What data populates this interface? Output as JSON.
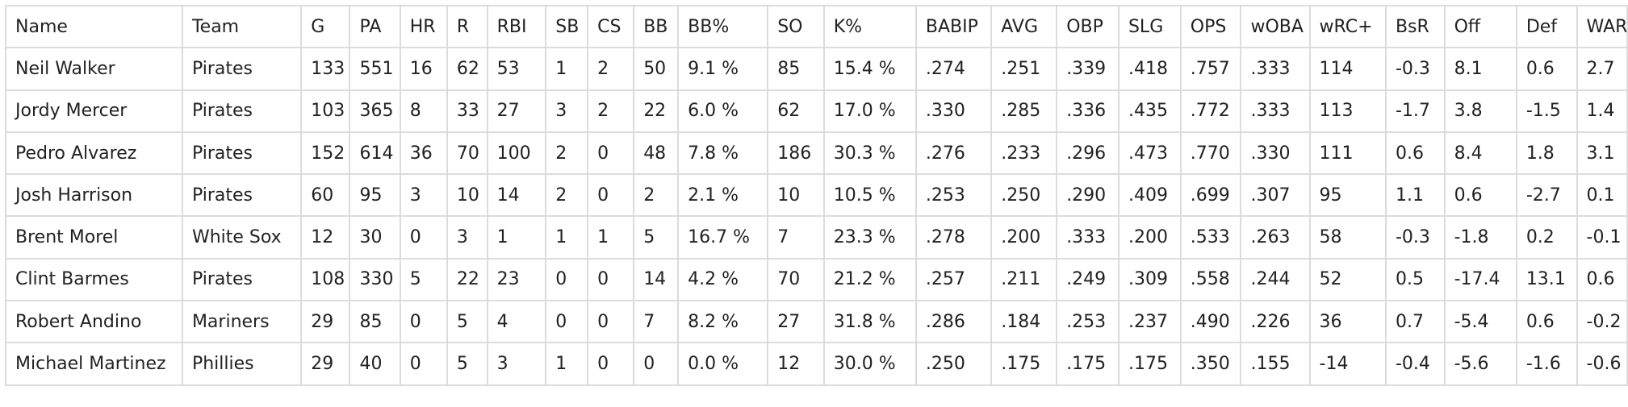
{
  "table": {
    "columns": [
      "Name",
      "Team",
      "G",
      "PA",
      "HR",
      "R",
      "RBI",
      "SB",
      "CS",
      "BB",
      "BB%",
      "SO",
      "K%",
      "BABIP",
      "AVG",
      "OBP",
      "SLG",
      "OPS",
      "wOBA",
      "wRC+",
      "BsR",
      "Off",
      "Def",
      "WAR"
    ],
    "rows": [
      [
        "Neil Walker",
        "Pirates",
        "133",
        "551",
        "16",
        "62",
        "53",
        "1",
        "2",
        "50",
        "9.1 %",
        "85",
        "15.4 %",
        ".274",
        ".251",
        ".339",
        ".418",
        ".757",
        ".333",
        "114",
        "-0.3",
        "8.1",
        "0.6",
        "2.7"
      ],
      [
        "Jordy Mercer",
        "Pirates",
        "103",
        "365",
        "8",
        "33",
        "27",
        "3",
        "2",
        "22",
        "6.0 %",
        "62",
        "17.0 %",
        ".330",
        ".285",
        ".336",
        ".435",
        ".772",
        ".333",
        "113",
        "-1.7",
        "3.8",
        "-1.5",
        "1.4"
      ],
      [
        "Pedro Alvarez",
        "Pirates",
        "152",
        "614",
        "36",
        "70",
        "100",
        "2",
        "0",
        "48",
        "7.8 %",
        "186",
        "30.3 %",
        ".276",
        ".233",
        ".296",
        ".473",
        ".770",
        ".330",
        "111",
        "0.6",
        "8.4",
        "1.8",
        "3.1"
      ],
      [
        "Josh Harrison",
        "Pirates",
        "60",
        "95",
        "3",
        "10",
        "14",
        "2",
        "0",
        "2",
        "2.1 %",
        "10",
        "10.5 %",
        ".253",
        ".250",
        ".290",
        ".409",
        ".699",
        ".307",
        "95",
        "1.1",
        "0.6",
        "-2.7",
        "0.1"
      ],
      [
        "Brent Morel",
        "White Sox",
        "12",
        "30",
        "0",
        "3",
        "1",
        "1",
        "1",
        "5",
        "16.7 %",
        "7",
        "23.3 %",
        ".278",
        ".200",
        ".333",
        ".200",
        ".533",
        ".263",
        "58",
        "-0.3",
        "-1.8",
        "0.2",
        "-0.1"
      ],
      [
        "Clint Barmes",
        "Pirates",
        "108",
        "330",
        "5",
        "22",
        "23",
        "0",
        "0",
        "14",
        "4.2 %",
        "70",
        "21.2 %",
        ".257",
        ".211",
        ".249",
        ".309",
        ".558",
        ".244",
        "52",
        "0.5",
        "-17.4",
        "13.1",
        "0.6"
      ],
      [
        "Robert Andino",
        "Mariners",
        "29",
        "85",
        "0",
        "5",
        "4",
        "0",
        "0",
        "7",
        "8.2 %",
        "27",
        "31.8 %",
        ".286",
        ".184",
        ".253",
        ".237",
        ".490",
        ".226",
        "36",
        "0.7",
        "-5.4",
        "0.6",
        "-0.2"
      ],
      [
        "Michael Martinez",
        "Phillies",
        "29",
        "40",
        "0",
        "5",
        "3",
        "1",
        "0",
        "0",
        "0.0 %",
        "12",
        "30.0 %",
        ".250",
        ".175",
        ".175",
        ".175",
        ".350",
        ".155",
        "-14",
        "-0.4",
        "-5.6",
        "-1.6",
        "-0.6"
      ]
    ]
  }
}
